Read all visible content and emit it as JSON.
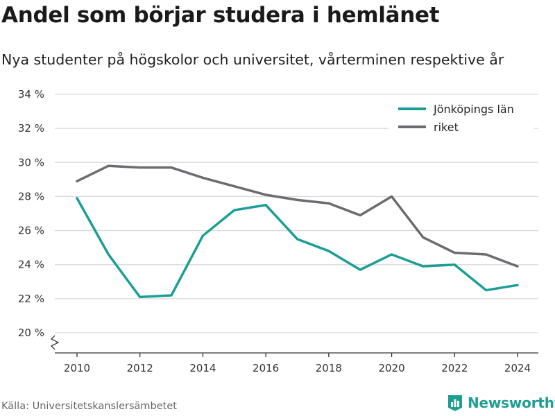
{
  "header": {
    "title": "Andel som börjar studera i hemlänet",
    "subtitle": "Nya studenter på högskolor och universitet, vårterminen respektive år"
  },
  "footer": {
    "source": "Källa: Universitetskanslersämbetet",
    "brand": "Newsworthy",
    "brand_icon": "bar-chart-logo-icon"
  },
  "colors": {
    "jonkoping": "#1a9e95",
    "riket": "#6b6b70",
    "grid": "#d9d9d9",
    "brand": "#1f9e93"
  },
  "chart_data": {
    "type": "line",
    "title": "Andel som börjar studera i hemlänet",
    "subtitle": "Nya studenter på högskolor och universitet, vårterminen respektive år",
    "x": [
      2010,
      2011,
      2012,
      2013,
      2014,
      2015,
      2016,
      2017,
      2018,
      2019,
      2020,
      2021,
      2022,
      2023,
      2024
    ],
    "series": [
      {
        "name": "Jönköpings län",
        "values": [
          27.9,
          24.6,
          22.1,
          22.2,
          25.7,
          27.2,
          27.5,
          25.5,
          24.8,
          23.7,
          24.6,
          23.9,
          24.0,
          22.5,
          22.8
        ]
      },
      {
        "name": "riket",
        "values": [
          28.9,
          29.8,
          29.7,
          29.7,
          29.1,
          28.6,
          28.1,
          27.8,
          27.6,
          26.9,
          28.0,
          25.6,
          24.7,
          24.6,
          23.9
        ]
      }
    ],
    "xticks": [
      2010,
      2012,
      2014,
      2016,
      2018,
      2020,
      2022,
      2024
    ],
    "yticks": [
      20,
      22,
      24,
      26,
      28,
      30,
      32,
      34
    ],
    "ytick_labels": [
      "20 %",
      "22 %",
      "24 %",
      "26 %",
      "28 %",
      "30 %",
      "32 %",
      "34 %"
    ],
    "ylim": [
      20,
      34
    ],
    "xlim": [
      2010,
      2024
    ],
    "xlabel": "",
    "ylabel": "",
    "grid": true,
    "axis_break": true,
    "legend": "top-right"
  }
}
